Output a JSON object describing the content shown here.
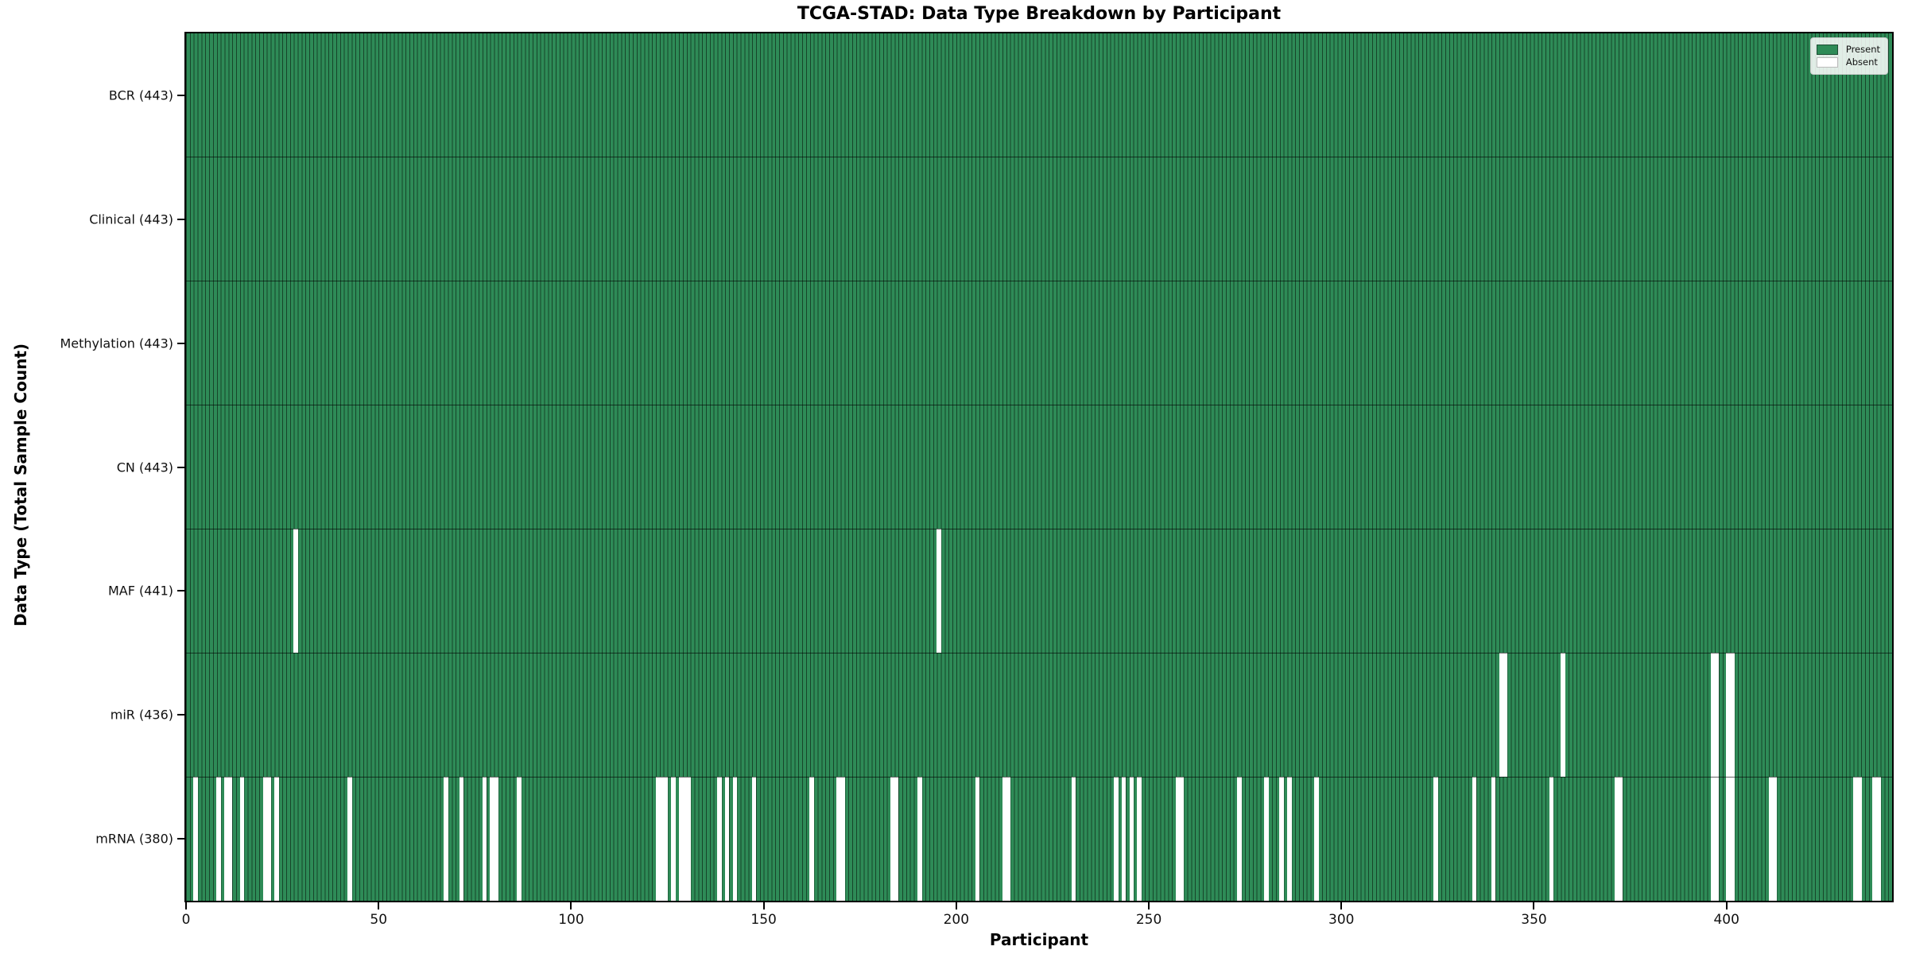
{
  "title": "TCGA-STAD: Data Type Breakdown by Participant",
  "colors": {
    "present": "#2e8b57",
    "absent": "#ffffff",
    "cell_edge": "#17452a",
    "row_separator": "#1b4a2e",
    "axis": "#000000",
    "legend_border": "#cccccc"
  },
  "legend": {
    "entries": [
      {
        "label": "Present",
        "color": "#2e8b57"
      },
      {
        "label": "Absent",
        "color": "#ffffff"
      }
    ]
  },
  "chart_data": {
    "type": "heatmap",
    "title": "TCGA-STAD: Data Type Breakdown by Participant",
    "xlabel": "Participant",
    "ylabel": "Data Type (Total Sample Count)",
    "x_range": [
      0,
      443
    ],
    "x_ticks": [
      0,
      50,
      100,
      150,
      200,
      250,
      300,
      350,
      400
    ],
    "n_participants": 443,
    "grid": false,
    "legend_position": "upper right",
    "legend": [
      {
        "label": "Present",
        "color": "#2e8b57"
      },
      {
        "label": "Absent",
        "color": "#ffffff"
      }
    ],
    "rows": [
      {
        "data_type": "BCR",
        "label": "BCR (443)",
        "present_count": 443,
        "absent_count": 0,
        "absent_participants": []
      },
      {
        "data_type": "Clinical",
        "label": "Clinical (443)",
        "present_count": 443,
        "absent_count": 0,
        "absent_participants": []
      },
      {
        "data_type": "Methylation",
        "label": "Methylation (443)",
        "present_count": 443,
        "absent_count": 0,
        "absent_participants": []
      },
      {
        "data_type": "CN",
        "label": "CN (443)",
        "present_count": 443,
        "absent_count": 0,
        "absent_participants": []
      },
      {
        "data_type": "MAF",
        "label": "MAF (441)",
        "present_count": 441,
        "absent_count": 2,
        "absent_participants": [
          28,
          195
        ]
      },
      {
        "data_type": "miR",
        "label": "miR (436)",
        "present_count": 436,
        "absent_count": 7,
        "absent_participants": [
          341,
          342,
          357,
          396,
          397,
          400,
          401
        ]
      },
      {
        "data_type": "mRNA",
        "label": "mRNA (380)",
        "present_count": 380,
        "absent_count": 63,
        "absent_participants": [
          2,
          8,
          10,
          11,
          14,
          20,
          21,
          23,
          42,
          67,
          71,
          77,
          79,
          80,
          86,
          122,
          123,
          124,
          126,
          128,
          129,
          130,
          138,
          140,
          142,
          147,
          162,
          169,
          170,
          183,
          184,
          190,
          205,
          212,
          213,
          230,
          241,
          243,
          245,
          247,
          257,
          258,
          273,
          280,
          284,
          286,
          293,
          324,
          334,
          339,
          354,
          371,
          372,
          396,
          397,
          400,
          401,
          411,
          412,
          433,
          434,
          438,
          439
        ]
      }
    ]
  }
}
